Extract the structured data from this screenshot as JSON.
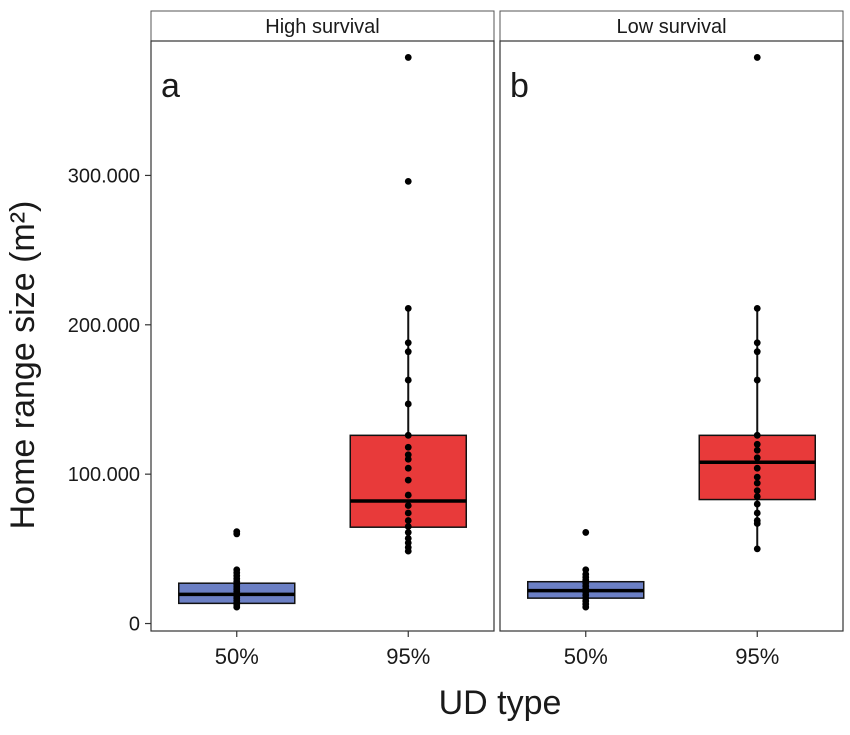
{
  "chart_data": {
    "type": "box",
    "xlabel": "UD type",
    "ylabel": "Home range size (m²)",
    "ylim": [
      -5000,
      390000
    ],
    "yticks": [
      0,
      100000,
      200000,
      300000
    ],
    "ytick_labels": [
      "0",
      "100.000",
      "200.000",
      "300.000"
    ],
    "categories": [
      "50%",
      "95%"
    ],
    "fill_colors": {
      "50%": "#6b7fc4",
      "95%": "#e83a3a"
    },
    "grid": false,
    "legend": "none",
    "panels": [
      {
        "facet": "High survival",
        "tag": "a",
        "boxes": [
          {
            "category": "50%",
            "q1": 13500,
            "median": 19500,
            "q3": 27000,
            "whisker_low": 11000,
            "whisker_high": 36000,
            "points": [
              11000,
              12500,
              14000,
              15500,
              17000,
              18500,
              20000,
              21500,
              23000,
              24500,
              26000,
              28000,
              30000,
              32000,
              34000,
              36000,
              60000,
              61500
            ]
          },
          {
            "category": "95%",
            "q1": 64500,
            "median": 82000,
            "q3": 126000,
            "whisker_low": 48500,
            "whisker_high": 211000,
            "points": [
              48500,
              51000,
              54000,
              57000,
              61000,
              65000,
              69000,
              74000,
              79000,
              86000,
              96000,
              104000,
              110000,
              113000,
              118000,
              126000,
              147000,
              163000,
              182000,
              188000,
              211000,
              296000,
              379000
            ]
          }
        ]
      },
      {
        "facet": "Low survival",
        "tag": "b",
        "boxes": [
          {
            "category": "50%",
            "q1": 17000,
            "median": 22000,
            "q3": 28000,
            "whisker_low": 11000,
            "whisker_high": 36000,
            "points": [
              11000,
              13000,
              15000,
              17000,
              19000,
              21000,
              23000,
              25000,
              27000,
              29000,
              31000,
              33000,
              36000,
              61000
            ]
          },
          {
            "category": "95%",
            "q1": 83000,
            "median": 108000,
            "q3": 126000,
            "whisker_low": 50000,
            "whisker_high": 211000,
            "points": [
              50000,
              67000,
              69000,
              74000,
              80000,
              85000,
              89000,
              94000,
              98000,
              104000,
              111000,
              116000,
              120000,
              126000,
              163000,
              182000,
              188000,
              211000,
              379000
            ]
          }
        ]
      }
    ]
  }
}
